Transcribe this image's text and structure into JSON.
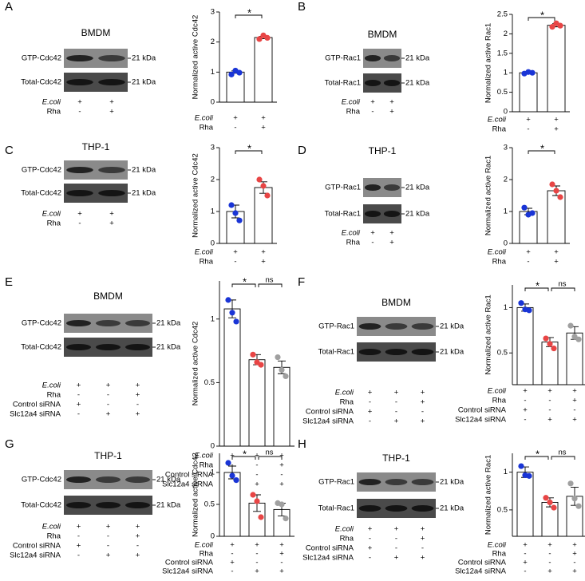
{
  "panels": [
    {
      "letter": "A",
      "blot": {
        "cell": "BMDM",
        "bands": [
          "GTP-Cdc42",
          "Total-Cdc42"
        ],
        "marker": "21 kDa"
      }
    },
    {
      "letter": "B",
      "blot": {
        "cell": "BMDM",
        "bands": [
          "GTP-Rac1",
          "Total-Rac1"
        ],
        "marker": "21 kDa"
      }
    },
    {
      "letter": "C",
      "blot": {
        "cell": "THP-1",
        "bands": [
          "GTP-Cdc42",
          "Total-Cdc42"
        ],
        "marker": "21 kDa"
      }
    },
    {
      "letter": "D",
      "blot": {
        "cell": "THP-1",
        "bands": [
          "GTP-Rac1",
          "Total-Rac1"
        ],
        "marker": "21 kDa"
      }
    },
    {
      "letter": "E",
      "blot": {
        "cell": "BMDM",
        "bands": [
          "GTP-Cdc42",
          "Total-Cdc42"
        ],
        "marker": "21 kDa"
      }
    },
    {
      "letter": "F",
      "blot": {
        "cell": "BMDM",
        "bands": [
          "GTP-Rac1",
          "Total-Rac1"
        ],
        "marker": "21 kDa"
      }
    },
    {
      "letter": "G",
      "blot": {
        "cell": "THP-1",
        "bands": [
          "GTP-Cdc42",
          "Total-Cdc42"
        ],
        "marker": "21 kDa"
      }
    },
    {
      "letter": "H",
      "blot": {
        "cell": "THP-1",
        "bands": [
          "GTP-Rac1",
          "Total-Rac1"
        ],
        "marker": "21 kDa"
      }
    }
  ],
  "chart_data": [
    {
      "type": "bar",
      "ylabel": "Normalized active Cdc42",
      "values": [
        1.0,
        2.15
      ],
      "errors": [
        0.04,
        0.04
      ],
      "points": [
        [
          0.92,
          1.05,
          0.98
        ],
        [
          2.1,
          2.22,
          2.14
        ]
      ],
      "colors": [
        "#1a35d6",
        "#e84545"
      ],
      "ylim": [
        0,
        3
      ],
      "yticks": [
        0,
        1,
        2,
        3
      ],
      "conditions": [
        {
          "label": "E.coli",
          "signs": [
            "+",
            "+"
          ]
        },
        {
          "label": "Rha",
          "signs": [
            "-",
            "+"
          ]
        }
      ],
      "significance": [
        {
          "from": 0,
          "to": 1,
          "label": "*"
        }
      ]
    },
    {
      "type": "bar",
      "ylabel": "Normalized active Rac1",
      "values": [
        1.0,
        2.22
      ],
      "errors": [
        0.02,
        0.04
      ],
      "points": [
        [
          0.98,
          1.02,
          1.0
        ],
        [
          2.18,
          2.27,
          2.21
        ]
      ],
      "colors": [
        "#1a35d6",
        "#e84545"
      ],
      "ylim": [
        0,
        2.5
      ],
      "yticks": [
        0,
        0.5,
        1,
        1.5,
        2,
        2.5
      ],
      "conditions": [
        {
          "label": "E.coli",
          "signs": [
            "+",
            "+"
          ]
        },
        {
          "label": "Rha",
          "signs": [
            "-",
            "+"
          ]
        }
      ],
      "significance": [
        {
          "from": 0,
          "to": 1,
          "label": "*"
        }
      ]
    },
    {
      "type": "bar",
      "ylabel": "Normalized active Cdc42",
      "values": [
        1.0,
        1.75
      ],
      "errors": [
        0.2,
        0.18
      ],
      "points": [
        [
          1.2,
          0.95,
          0.72
        ],
        [
          2.0,
          1.8,
          1.5
        ]
      ],
      "colors": [
        "#1a35d6",
        "#e84545"
      ],
      "ylim": [
        0,
        3
      ],
      "yticks": [
        0,
        1,
        2,
        3
      ],
      "conditions": [
        {
          "label": "E.coli",
          "signs": [
            "+",
            "+"
          ]
        },
        {
          "label": "Rha",
          "signs": [
            "-",
            "+"
          ]
        }
      ],
      "significance": [
        {
          "from": 0,
          "to": 1,
          "label": "*"
        }
      ]
    },
    {
      "type": "bar",
      "ylabel": "Normalized active Rac1",
      "values": [
        1.0,
        1.65
      ],
      "errors": [
        0.1,
        0.15
      ],
      "points": [
        [
          1.12,
          0.9,
          0.95
        ],
        [
          1.85,
          1.65,
          1.45
        ]
      ],
      "colors": [
        "#1a35d6",
        "#e84545"
      ],
      "ylim": [
        0,
        3
      ],
      "yticks": [
        0,
        1,
        2,
        3
      ],
      "conditions": [
        {
          "label": "E.coli",
          "signs": [
            "+",
            "+"
          ]
        },
        {
          "label": "Rha",
          "signs": [
            "-",
            "+"
          ]
        }
      ],
      "significance": [
        {
          "from": 0,
          "to": 1,
          "label": "*"
        }
      ]
    },
    {
      "type": "bar",
      "ylabel": "Normalized active Cdc42",
      "values": [
        1.08,
        0.68,
        0.62
      ],
      "errors": [
        0.07,
        0.04,
        0.05
      ],
      "points": [
        [
          1.15,
          1.05,
          0.98
        ],
        [
          0.72,
          0.66,
          0.64
        ],
        [
          0.7,
          0.6,
          0.55
        ]
      ],
      "colors": [
        "#1a35d6",
        "#e84545",
        "#a0a0a0"
      ],
      "ylim": [
        0,
        1.3
      ],
      "yticks": [
        0,
        0.5,
        1
      ],
      "conditions": [
        {
          "label": "E.coli",
          "signs": [
            "+",
            "+",
            "+"
          ]
        },
        {
          "label": "Rha",
          "signs": [
            "-",
            "-",
            "+"
          ]
        },
        {
          "label": "Control siRNA",
          "signs": [
            "+",
            "-",
            "-"
          ]
        },
        {
          "label": "Slc12a4 siRNA",
          "signs": [
            "-",
            "+",
            "+"
          ]
        }
      ],
      "significance": [
        {
          "from": 0,
          "to": 1,
          "label": "*"
        },
        {
          "from": 1,
          "to": 2,
          "label": "ns"
        }
      ]
    },
    {
      "type": "bar",
      "ylabel": "Normalized active Rac1",
      "values": [
        1.0,
        0.62,
        0.72
      ],
      "errors": [
        0.04,
        0.05,
        0.07
      ],
      "points": [
        [
          1.05,
          0.98,
          0.97
        ],
        [
          0.66,
          0.6,
          0.55
        ],
        [
          0.8,
          0.68,
          0.65
        ]
      ],
      "colors": [
        "#1a35d6",
        "#e84545",
        "#a0a0a0"
      ],
      "ylim": [
        0.15,
        1.25
      ],
      "yticks": [
        0.5,
        1
      ],
      "conditions": [
        {
          "label": "E.coli",
          "signs": [
            "+",
            "+",
            "+"
          ]
        },
        {
          "label": "Rha",
          "signs": [
            "-",
            "-",
            "+"
          ]
        },
        {
          "label": "Control siRNA",
          "signs": [
            "+",
            "-",
            "-"
          ]
        },
        {
          "label": "Slc12a4 siRNA",
          "signs": [
            "-",
            "+",
            "+"
          ]
        }
      ],
      "significance": [
        {
          "from": 0,
          "to": 1,
          "label": "*"
        },
        {
          "from": 1,
          "to": 2,
          "label": "ns"
        }
      ]
    },
    {
      "type": "bar",
      "ylabel": "Normalized active Cdc42",
      "values": [
        1.0,
        0.52,
        0.42
      ],
      "errors": [
        0.1,
        0.13,
        0.1
      ],
      "points": [
        [
          1.15,
          0.95,
          0.88
        ],
        [
          0.65,
          0.55,
          0.3
        ],
        [
          0.52,
          0.5,
          0.28
        ]
      ],
      "colors": [
        "#1a35d6",
        "#e84545",
        "#a0a0a0"
      ],
      "ylim": [
        0,
        1.3
      ],
      "yticks": [
        0,
        0.5,
        1
      ],
      "conditions": [
        {
          "label": "E.coli",
          "signs": [
            "+",
            "+",
            "+"
          ]
        },
        {
          "label": "Rha",
          "signs": [
            "-",
            "-",
            "+"
          ]
        },
        {
          "label": "Control siRNA",
          "signs": [
            "+",
            "-",
            "-"
          ]
        },
        {
          "label": "Slc12a4 siRNA",
          "signs": [
            "-",
            "+",
            "+"
          ]
        }
      ],
      "significance": [
        {
          "from": 0,
          "to": 1,
          "label": "*"
        },
        {
          "from": 1,
          "to": 2,
          "label": "ns"
        }
      ]
    },
    {
      "type": "bar",
      "ylabel": "Normalized active Rac1",
      "values": [
        1.0,
        0.6,
        0.68
      ],
      "errors": [
        0.07,
        0.06,
        0.12
      ],
      "points": [
        [
          1.08,
          0.96,
          0.95
        ],
        [
          0.66,
          0.6,
          0.53
        ],
        [
          0.85,
          0.65,
          0.55
        ]
      ],
      "colors": [
        "#1a35d6",
        "#e84545",
        "#a0a0a0"
      ],
      "ylim": [
        0.15,
        1.25
      ],
      "yticks": [
        0.5,
        1
      ],
      "conditions": [
        {
          "label": "E.coli",
          "signs": [
            "+",
            "+",
            "+"
          ]
        },
        {
          "label": "Rha",
          "signs": [
            "-",
            "-",
            "+"
          ]
        },
        {
          "label": "Control siRNA",
          "signs": [
            "+",
            "-",
            "-"
          ]
        },
        {
          "label": "Slc12a4 siRNA",
          "signs": [
            "-",
            "+",
            "+"
          ]
        }
      ],
      "significance": [
        {
          "from": 0,
          "to": 1,
          "label": "*"
        },
        {
          "from": 1,
          "to": 2,
          "label": "ns"
        }
      ]
    }
  ]
}
